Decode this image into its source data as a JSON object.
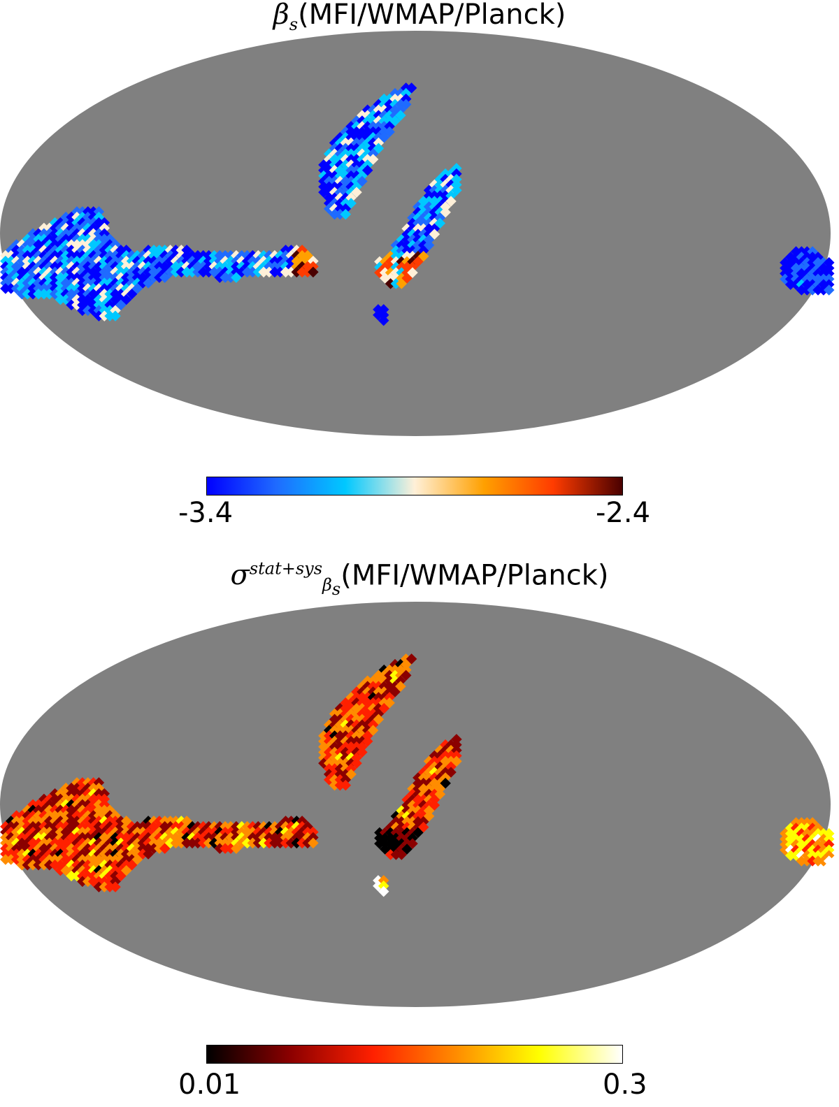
{
  "panels": [
    {
      "title_symbol": "β",
      "title_symbol_sub": "s",
      "title_text": "(MFI/WMAP/Planck)",
      "colormap": [
        "#0000ff",
        "#1f6bff",
        "#00c8ff",
        "#fff0d8",
        "#ffa000",
        "#ff3c00",
        "#4a0000"
      ],
      "cbar_min_label": "-3.4",
      "cbar_max_label": "-2.4"
    },
    {
      "title_symbol": "σ",
      "title_symbol_sup": "stat+sys",
      "title_symbol_sub": "β",
      "title_symbol_subsub": "s",
      "title_text": "(MFI/WMAP/Planck)",
      "colormap": [
        "#000000",
        "#8b0000",
        "#ff2000",
        "#ff8c00",
        "#ffff00",
        "#ffffff"
      ],
      "cbar_min_label": "0.01",
      "cbar_max_label": "0.3"
    }
  ],
  "masked_color": "#808080"
}
